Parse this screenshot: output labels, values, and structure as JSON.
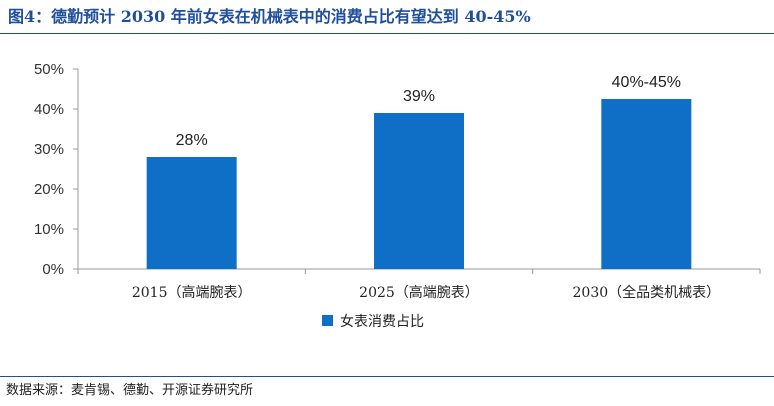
{
  "figure_title": "图4：德勤预计 2030 年前女表在机械表中的消费占比有望达到 40-45%",
  "source_note": "数据来源：麦肯锡、德勤、开源证券研究所",
  "colors": {
    "bar": "#0f6fc6",
    "title": "#1f4e9c"
  },
  "chart_data": {
    "type": "bar",
    "categories": [
      "2015（高端腕表）",
      "2025（高端腕表）",
      "2030（全品类机械表）"
    ],
    "series": [
      {
        "name": "女表消费占比",
        "values": [
          28,
          39,
          42.5
        ],
        "labels": [
          "28%",
          "39%",
          "40%-45%"
        ]
      }
    ],
    "ylim": [
      0,
      50
    ],
    "yticks": [
      "0%",
      "10%",
      "20%",
      "30%",
      "40%",
      "50%"
    ],
    "legend": "bottom-center",
    "grid": false
  }
}
